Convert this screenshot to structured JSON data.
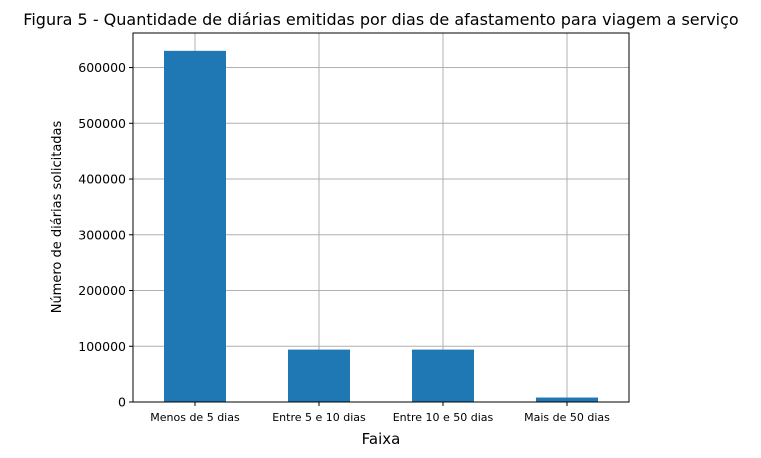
{
  "chart_data": {
    "type": "bar",
    "title": "Figura 5 - Quantidade de diárias emitidas por dias de afastamento para viagem a serviço",
    "xlabel": "Faixa",
    "ylabel": "Número de diárias solicitadas",
    "categories": [
      "Menos de 5 dias",
      "Entre 5 e 10 dias",
      "Entre 10 e 50 dias",
      "Mais de 50 dias"
    ],
    "values": [
      630000,
      94000,
      94000,
      8000
    ],
    "yticks": [
      0,
      100000,
      200000,
      300000,
      400000,
      500000,
      600000
    ],
    "ytick_labels": [
      "0",
      "100000",
      "200000",
      "300000",
      "400000",
      "500000",
      "600000"
    ],
    "ylim": [
      0,
      662000
    ],
    "grid": true,
    "colors": {
      "bar": "#1f77b4",
      "grid": "#b0b0b0",
      "axes": "#000000"
    }
  }
}
